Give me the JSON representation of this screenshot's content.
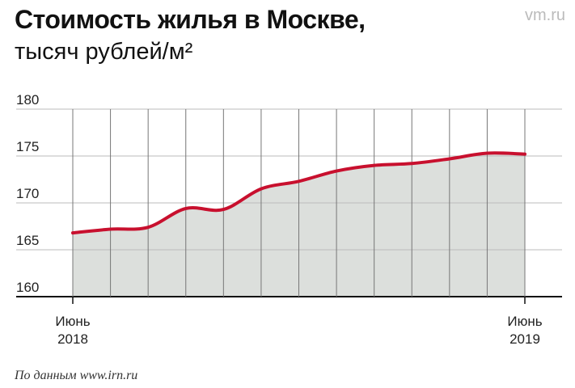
{
  "chart_data": {
    "type": "area",
    "title": "Стоимость жилья в Москве,",
    "subtitle": "тысяч рублей/м²",
    "source": "По данным www.irn.ru",
    "watermark": "vm.ru",
    "categories": [
      "Июнь 2018",
      null,
      null,
      null,
      null,
      null,
      null,
      null,
      null,
      null,
      null,
      null,
      "Июнь 2019"
    ],
    "values": [
      166.8,
      167.2,
      167.4,
      169.4,
      169.3,
      171.5,
      172.3,
      173.4,
      174.0,
      174.2,
      174.7,
      175.3,
      175.2
    ],
    "color": "#c8102e",
    "fill": "#dcdfdc",
    "ylim": [
      160,
      180
    ],
    "yticks": [
      160,
      165,
      170,
      175,
      180
    ],
    "grid": true
  }
}
